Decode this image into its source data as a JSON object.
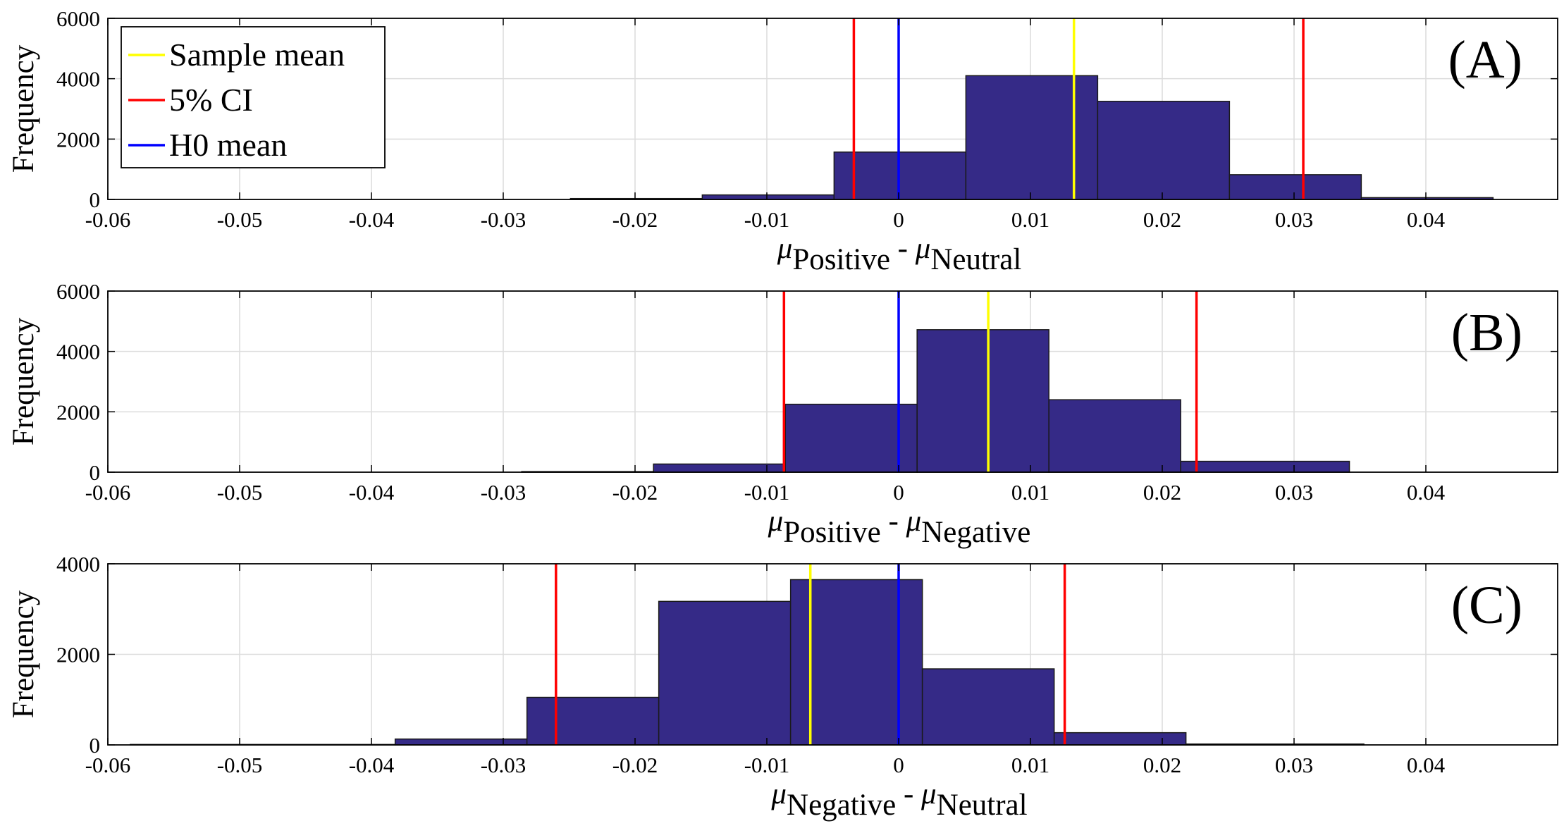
{
  "chart_data": [
    {
      "type": "bar",
      "panel_label": "(A)",
      "ylabel": "Frequency",
      "xlabel": {
        "mu": "μ",
        "sub1": "Positive",
        "sep": " - ",
        "sub2": "Neutral"
      },
      "xlim": [
        -0.06,
        0.05
      ],
      "ylim": [
        0,
        6000
      ],
      "xticks": [
        -0.06,
        -0.05,
        -0.04,
        -0.03,
        -0.02,
        -0.01,
        0,
        0.01,
        0.02,
        0.03,
        0.04
      ],
      "xtick_labels": [
        "-0.06",
        "-0.05",
        "-0.04",
        "-0.03",
        "-0.02",
        "-0.01",
        "0",
        "0.01",
        "0.02",
        "0.03",
        "0.04"
      ],
      "yticks": [
        0,
        2000,
        4000,
        6000
      ],
      "ytick_labels": [
        "0",
        "2000",
        "4000",
        "6000"
      ],
      "bins": [
        {
          "x0": -0.0249,
          "x1": -0.0149,
          "count": 30
        },
        {
          "x0": -0.0149,
          "x1": -0.0049,
          "count": 150
        },
        {
          "x0": -0.0049,
          "x1": 0.0051,
          "count": 1570
        },
        {
          "x0": 0.0051,
          "x1": 0.0151,
          "count": 4100
        },
        {
          "x0": 0.0151,
          "x1": 0.0251,
          "count": 3250
        },
        {
          "x0": 0.0251,
          "x1": 0.0351,
          "count": 820
        },
        {
          "x0": 0.0351,
          "x1": 0.0451,
          "count": 60
        }
      ],
      "lines": {
        "sample_mean": 0.0133,
        "ci_low": -0.0034,
        "ci_high": 0.0307,
        "h0_mean": 0
      },
      "legend": {
        "position": "top-left",
        "entries": [
          {
            "label": "Sample mean",
            "color": "#ffff00"
          },
          {
            "label": " 5% CI",
            "color": "#ff0000"
          },
          {
            "label": "H0 mean",
            "color": "#0000ff"
          }
        ]
      }
    },
    {
      "type": "bar",
      "panel_label": "(B)",
      "ylabel": "Frequency",
      "xlabel": {
        "mu": "μ",
        "sub1": "Positive",
        "sep": " - ",
        "sub2": "Negative"
      },
      "xlim": [
        -0.06,
        0.05
      ],
      "ylim": [
        0,
        6000
      ],
      "xticks": [
        -0.06,
        -0.05,
        -0.04,
        -0.03,
        -0.02,
        -0.01,
        0,
        0.01,
        0.02,
        0.03,
        0.04
      ],
      "xtick_labels": [
        "-0.06",
        "-0.05",
        "-0.04",
        "-0.03",
        "-0.02",
        "-0.01",
        "0",
        "0.01",
        "0.02",
        "0.03",
        "0.04"
      ],
      "yticks": [
        0,
        2000,
        4000,
        6000
      ],
      "ytick_labels": [
        "0",
        "2000",
        "4000",
        "6000"
      ],
      "bins": [
        {
          "x0": -0.0286,
          "x1": -0.0186,
          "count": 20
        },
        {
          "x0": -0.0186,
          "x1": -0.0086,
          "count": 270
        },
        {
          "x0": -0.0086,
          "x1": 0.0014,
          "count": 2250
        },
        {
          "x0": 0.0014,
          "x1": 0.0114,
          "count": 4720
        },
        {
          "x0": 0.0114,
          "x1": 0.0214,
          "count": 2400
        },
        {
          "x0": 0.0214,
          "x1": 0.0342,
          "count": 360
        }
      ],
      "lines": {
        "sample_mean": 0.0068,
        "ci_low": -0.0087,
        "ci_high": 0.0226,
        "h0_mean": 0
      }
    },
    {
      "type": "bar",
      "panel_label": "(C)",
      "ylabel": "Frequency",
      "xlabel": {
        "mu": "μ",
        "sub1": "Negative",
        "sep": " - ",
        "sub2": "Neutral"
      },
      "xlim": [
        -0.06,
        0.05
      ],
      "ylim": [
        0,
        4000
      ],
      "xticks": [
        -0.06,
        -0.05,
        -0.04,
        -0.03,
        -0.02,
        -0.01,
        0,
        0.01,
        0.02,
        0.03,
        0.04
      ],
      "xtick_labels": [
        "-0.06",
        "-0.05",
        "-0.04",
        "-0.03",
        "-0.02",
        "-0.01",
        "0",
        "0.01",
        "0.02",
        "0.03",
        "0.04"
      ],
      "yticks": [
        0,
        2000,
        4000
      ],
      "ytick_labels": [
        "0",
        "2000",
        "4000"
      ],
      "bins": [
        {
          "x0": -0.0583,
          "x1": -0.0382,
          "count": 10
        },
        {
          "x0": -0.0382,
          "x1": -0.0282,
          "count": 130
        },
        {
          "x0": -0.0282,
          "x1": -0.0182,
          "count": 1050
        },
        {
          "x0": -0.0182,
          "x1": -0.0082,
          "count": 3170
        },
        {
          "x0": -0.0082,
          "x1": 0.0018,
          "count": 3650
        },
        {
          "x0": 0.0018,
          "x1": 0.0118,
          "count": 1680
        },
        {
          "x0": 0.0118,
          "x1": 0.0218,
          "count": 270
        },
        {
          "x0": 0.0218,
          "x1": 0.0353,
          "count": 20
        }
      ],
      "lines": {
        "sample_mean": -0.0067,
        "ci_low": -0.026,
        "ci_high": 0.0126,
        "h0_mean": 0
      }
    }
  ],
  "colors": {
    "bar_fill": "#352a87",
    "bar_edge": "#1a1a1a",
    "grid": "#dcdcdc",
    "axis": "#000000"
  }
}
